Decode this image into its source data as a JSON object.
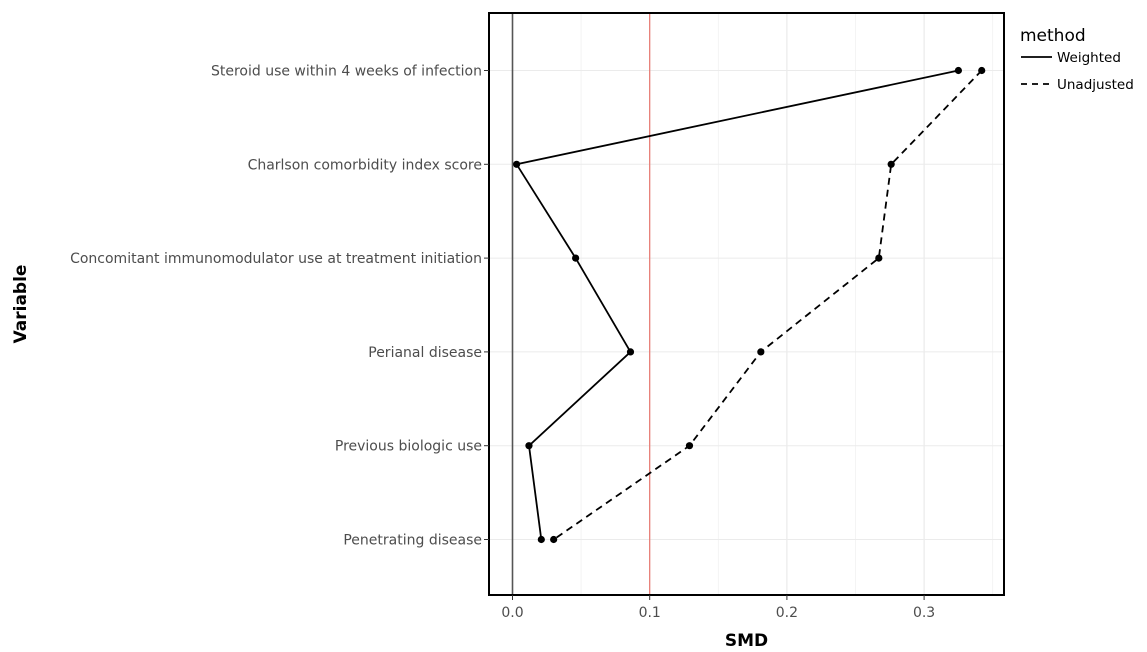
{
  "chart_data": {
    "type": "line",
    "xlabel": "SMD",
    "ylabel": "Variable",
    "xlim": [
      -0.014,
      0.36
    ],
    "xticks": [
      "0.0",
      "0.1",
      "0.2",
      "0.3"
    ],
    "xtick_values": [
      0,
      0.1,
      0.2,
      0.3
    ],
    "reference_lines": [
      {
        "x": 0,
        "color": "#555555"
      },
      {
        "x": 0.1,
        "color": "#e8766e"
      }
    ],
    "grid": true,
    "legend_position": "right",
    "legend": {
      "title": "method",
      "entries": [
        {
          "name": "Weighted",
          "linestyle": "solid"
        },
        {
          "name": "Unadjusted",
          "linestyle": "dashed"
        }
      ]
    },
    "categories": [
      "Steroid use within 4 weeks of infection",
      "Charlson comorbidity index score",
      "Concomitant immunomodulator use at treatment initiation",
      "Perianal disease",
      "Previous biologic use",
      "Penetrating disease"
    ],
    "series": [
      {
        "name": "Weighted",
        "linestyle": "solid",
        "color": "#000000",
        "values": [
          0.325,
          0.003,
          0.046,
          0.086,
          0.012,
          0.021
        ]
      },
      {
        "name": "Unadjusted",
        "linestyle": "dashed",
        "color": "#000000",
        "values": [
          0.342,
          0.276,
          0.267,
          0.181,
          0.129,
          0.03
        ]
      }
    ]
  }
}
